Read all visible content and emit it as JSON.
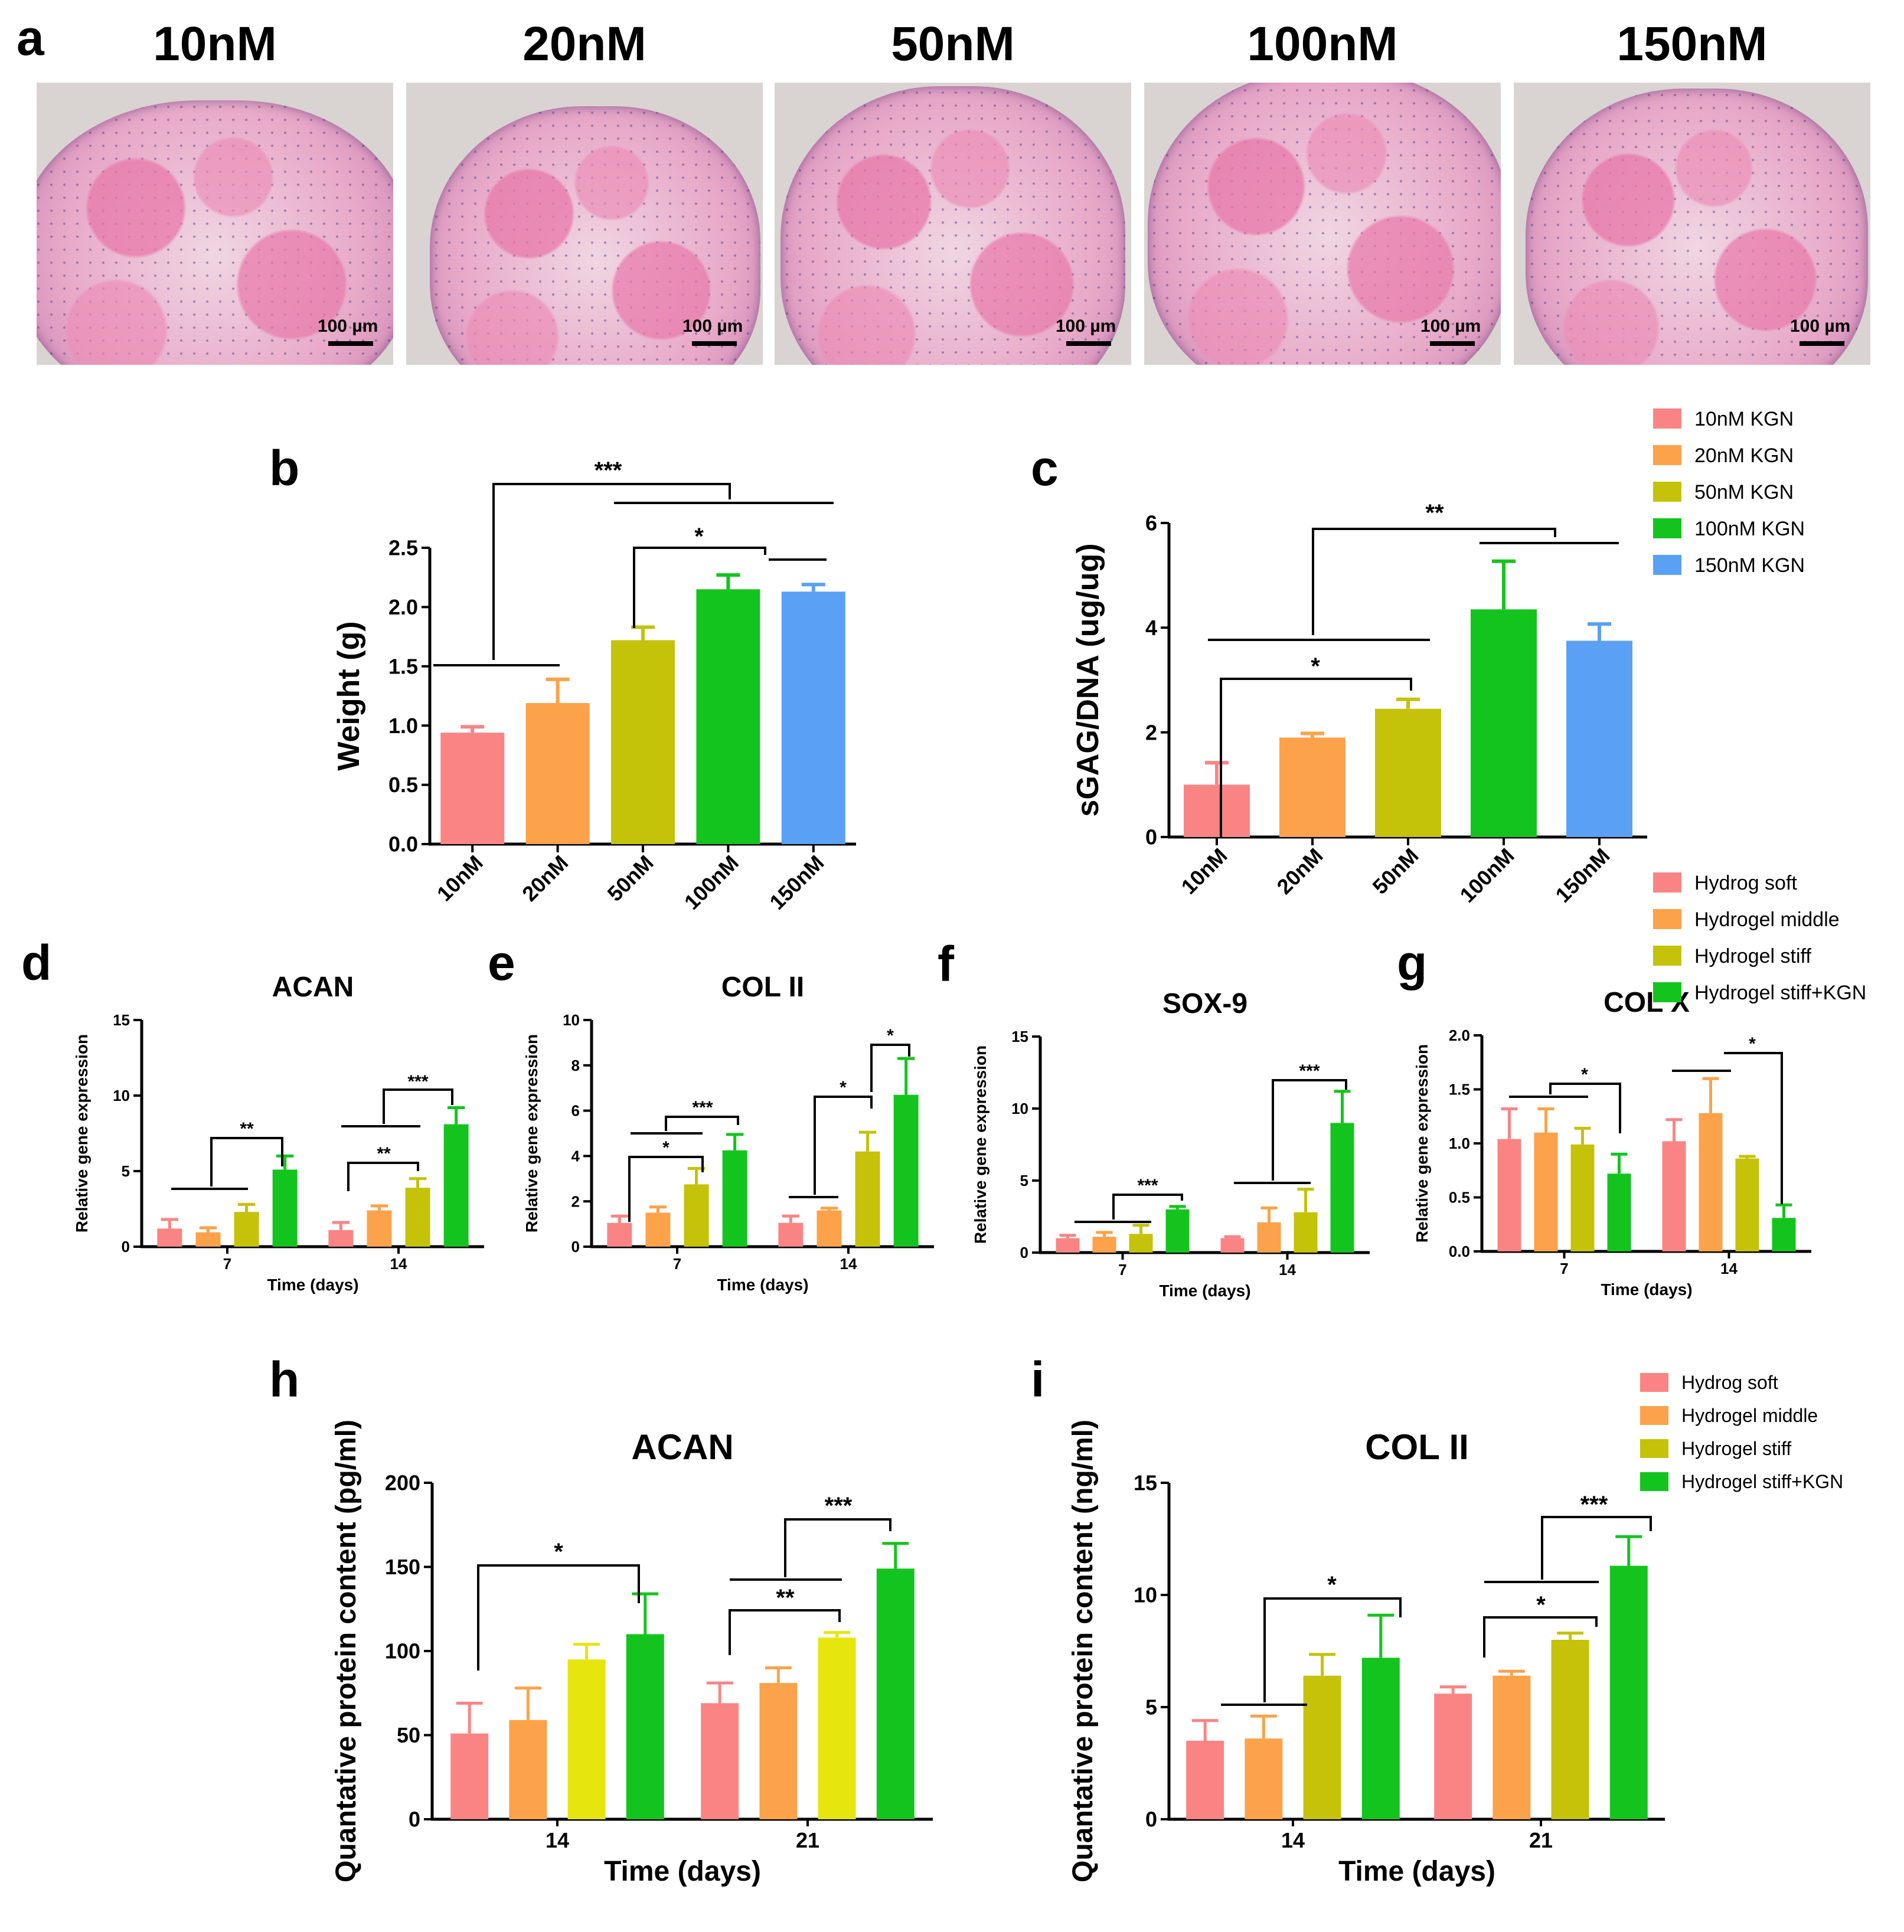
{
  "panel_a": {
    "letter": "a",
    "images": [
      {
        "title": "10nM",
        "scale": "100 µm"
      },
      {
        "title": "20nM",
        "scale": "100 µm"
      },
      {
        "title": "50nM",
        "scale": "100 µm"
      },
      {
        "title": "100nM",
        "scale": "100 µm"
      },
      {
        "title": "150nM",
        "scale": "100 µm"
      }
    ]
  },
  "colors": {
    "pink": "#fa8484",
    "orange": "#fba24a",
    "olive": "#c5c20a",
    "yellow": "#e6e60e",
    "green": "#14c41e",
    "blue": "#5aa0f5"
  },
  "chart_data": [
    {
      "id": "b",
      "letter": "b",
      "type": "bar",
      "title": "",
      "xlabel": "",
      "ylabel": "Weight (g)",
      "ylim": [
        0,
        2.5
      ],
      "yticks": [
        "0.0",
        "0.5",
        "1.0",
        "1.5",
        "2.0",
        "2.5"
      ],
      "categories": [
        "10nM",
        "20nM",
        "50nM",
        "100nM",
        "150nM"
      ],
      "values": [
        0.94,
        1.19,
        1.72,
        2.15,
        2.13
      ],
      "errors": [
        0.05,
        0.2,
        0.11,
        0.12,
        0.06
      ],
      "colors": [
        "#fa8484",
        "#fba24a",
        "#c5c20a",
        "#14c41e",
        "#5aa0f5"
      ],
      "significance": [
        "***",
        "*"
      ]
    },
    {
      "id": "c",
      "letter": "c",
      "type": "bar",
      "title": "",
      "xlabel": "",
      "ylabel": "sGAG/DNA (ug/ug)",
      "ylim": [
        0,
        6
      ],
      "yticks": [
        "0",
        "2",
        "4",
        "6"
      ],
      "categories": [
        "10nM",
        "20nM",
        "50nM",
        "100nM",
        "150nM"
      ],
      "values": [
        1.0,
        1.9,
        2.45,
        4.35,
        3.75
      ],
      "errors": [
        0.42,
        0.08,
        0.18,
        0.92,
        0.32
      ],
      "colors": [
        "#fa8484",
        "#fba24a",
        "#c5c20a",
        "#14c41e",
        "#5aa0f5"
      ],
      "legend": [
        "10nM KGN",
        "20nM KGN",
        "50nM KGN",
        "100nM KGN",
        "150nM KGN"
      ],
      "significance": [
        "**",
        "*"
      ]
    },
    {
      "id": "d",
      "letter": "d",
      "type": "bar",
      "title": "ACAN",
      "xlabel": "Time (days)",
      "ylabel": "Relative gene expression",
      "ylim": [
        0,
        15
      ],
      "yticks": [
        "0",
        "5",
        "10",
        "15"
      ],
      "categories": [
        "7",
        "14"
      ],
      "series": [
        {
          "values": [
            1.2,
            1.1
          ],
          "errors": [
            0.6,
            0.5
          ]
        },
        {
          "values": [
            0.95,
            2.4
          ],
          "errors": [
            0.3,
            0.3
          ]
        },
        {
          "values": [
            2.3,
            3.9
          ],
          "errors": [
            0.5,
            0.6
          ]
        },
        {
          "values": [
            5.1,
            8.1
          ],
          "errors": [
            0.9,
            1.1
          ]
        }
      ],
      "series_colors": [
        "#fa8484",
        "#fba24a",
        "#c5c20a",
        "#14c41e"
      ],
      "significance": [
        "**",
        "***",
        "**"
      ]
    },
    {
      "id": "e",
      "letter": "e",
      "type": "bar",
      "title": "COL II",
      "xlabel": "Time (days)",
      "ylabel": "Relative gene expression",
      "ylim": [
        0,
        10
      ],
      "yticks": [
        "0",
        "2",
        "4",
        "6",
        "8",
        "10"
      ],
      "categories": [
        "7",
        "14"
      ],
      "series": [
        {
          "values": [
            1.05,
            1.05
          ],
          "errors": [
            0.3,
            0.3
          ]
        },
        {
          "values": [
            1.5,
            1.6
          ],
          "errors": [
            0.25,
            0.1
          ]
        },
        {
          "values": [
            2.75,
            4.2
          ],
          "errors": [
            0.7,
            0.85
          ]
        },
        {
          "values": [
            4.25,
            6.7
          ],
          "errors": [
            0.7,
            1.6
          ]
        }
      ],
      "series_colors": [
        "#fa8484",
        "#fba24a",
        "#c5c20a",
        "#14c41e"
      ],
      "significance": [
        "*",
        "***",
        "*",
        "*"
      ]
    },
    {
      "id": "f",
      "letter": "f",
      "type": "bar",
      "title": "SOX-9",
      "xlabel": "Time (days)",
      "ylabel": "Relative gene expression",
      "ylim": [
        0,
        15
      ],
      "yticks": [
        "0",
        "5",
        "10",
        "15"
      ],
      "categories": [
        "7",
        "14"
      ],
      "series": [
        {
          "values": [
            1.0,
            1.0
          ],
          "errors": [
            0.2,
            0.1
          ]
        },
        {
          "values": [
            1.1,
            2.1
          ],
          "errors": [
            0.3,
            1.0
          ]
        },
        {
          "values": [
            1.3,
            2.8
          ],
          "errors": [
            0.6,
            1.6
          ]
        },
        {
          "values": [
            3.0,
            9.0
          ],
          "errors": [
            0.2,
            2.2
          ]
        }
      ],
      "series_colors": [
        "#fa8484",
        "#fba24a",
        "#c5c20a",
        "#14c41e"
      ],
      "significance": [
        "***",
        "***"
      ]
    },
    {
      "id": "g",
      "letter": "g",
      "type": "bar",
      "title": "COL X",
      "xlabel": "Time (days)",
      "ylabel": "Relative gene expression",
      "ylim": [
        0,
        2.0
      ],
      "yticks": [
        "0.0",
        "0.5",
        "1.0",
        "1.5",
        "2.0"
      ],
      "categories": [
        "7",
        "14"
      ],
      "series": [
        {
          "values": [
            1.04,
            1.02
          ],
          "errors": [
            0.28,
            0.2
          ]
        },
        {
          "values": [
            1.1,
            1.28
          ],
          "errors": [
            0.22,
            0.32
          ]
        },
        {
          "values": [
            0.99,
            0.86
          ],
          "errors": [
            0.15,
            0.02
          ]
        },
        {
          "values": [
            0.72,
            0.31
          ],
          "errors": [
            0.18,
            0.12
          ]
        }
      ],
      "series_colors": [
        "#fa8484",
        "#fba24a",
        "#c5c20a",
        "#14c41e"
      ],
      "legend": [
        "Hydrog soft",
        "Hydrogel middle",
        "Hydrogel stiff",
        "Hydrogel stiff+KGN"
      ],
      "significance": [
        "*",
        "*"
      ]
    },
    {
      "id": "h",
      "letter": "h",
      "type": "bar",
      "title": "ACAN",
      "xlabel": "Time (days)",
      "ylabel": "Quantative protein content (pg/ml)",
      "ylim": [
        0,
        200
      ],
      "yticks": [
        "0",
        "50",
        "100",
        "150",
        "200"
      ],
      "categories": [
        "14",
        "21"
      ],
      "series": [
        {
          "values": [
            51,
            69
          ],
          "errors": [
            18,
            12
          ]
        },
        {
          "values": [
            59,
            81
          ],
          "errors": [
            19,
            9
          ]
        },
        {
          "values": [
            95,
            108
          ],
          "errors": [
            9,
            3
          ]
        },
        {
          "values": [
            110,
            149
          ],
          "errors": [
            24,
            15
          ]
        }
      ],
      "series_colors": [
        "#fa8484",
        "#fba24a",
        "#e6e60e",
        "#14c41e"
      ],
      "significance": [
        "*",
        "***",
        "**"
      ]
    },
    {
      "id": "i",
      "letter": "i",
      "type": "bar",
      "title": "COL II",
      "xlabel": "Time (days)",
      "ylabel": "Quantative protein content (ng/ml)",
      "ylim": [
        0,
        15
      ],
      "yticks": [
        "0",
        "5",
        "10",
        "15"
      ],
      "categories": [
        "14",
        "21"
      ],
      "series": [
        {
          "values": [
            3.5,
            5.6
          ],
          "errors": [
            0.9,
            0.3
          ]
        },
        {
          "values": [
            3.6,
            6.4
          ],
          "errors": [
            1.0,
            0.2
          ]
        },
        {
          "values": [
            6.4,
            8.0
          ],
          "errors": [
            0.95,
            0.3
          ]
        },
        {
          "values": [
            7.2,
            11.3
          ],
          "errors": [
            1.9,
            1.3
          ]
        }
      ],
      "series_colors": [
        "#fa8484",
        "#fba24a",
        "#c5c20a",
        "#14c41e"
      ],
      "legend": [
        "Hydrog soft",
        "Hydrogel middle",
        "Hydrogel stiff",
        "Hydrogel stiff+KGN"
      ],
      "significance": [
        "*",
        "***",
        "*"
      ]
    }
  ]
}
